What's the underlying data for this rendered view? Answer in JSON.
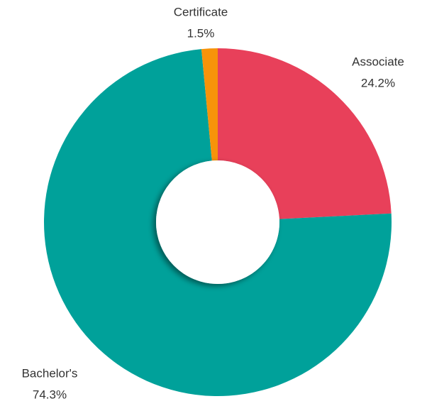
{
  "chart_data": {
    "type": "donut",
    "categories": [
      "Associate",
      "Bachelor's",
      "Certificate"
    ],
    "values": [
      24.2,
      74.3,
      1.5
    ],
    "value_labels": [
      "24.2%",
      "74.3%",
      "1.5%"
    ],
    "colors": [
      "#e8405a",
      "#00a19a",
      "#f7930a"
    ]
  }
}
